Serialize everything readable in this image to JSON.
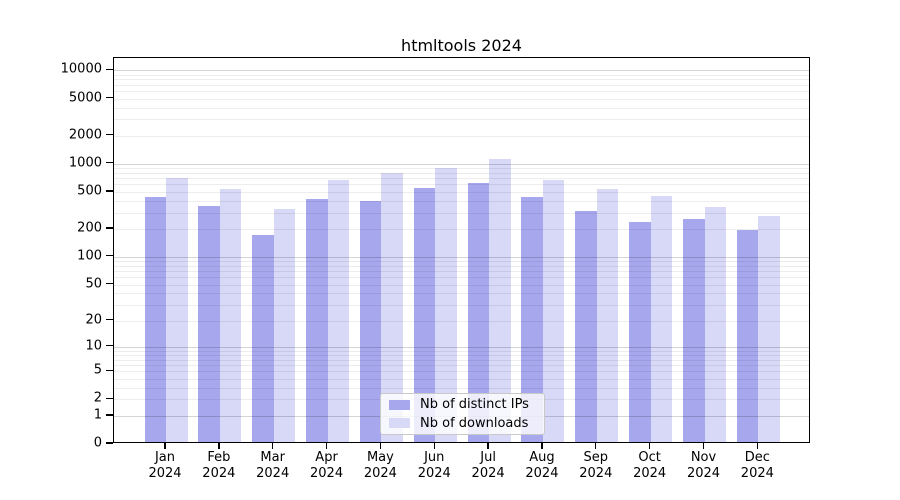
{
  "title": "htmltools 2024",
  "chart_data": {
    "type": "bar",
    "title": "htmltools 2024",
    "categories": [
      "Jan 2024",
      "Feb 2024",
      "Mar 2024",
      "Apr 2024",
      "May 2024",
      "Jun 2024",
      "Jul 2024",
      "Aug 2024",
      "Sep 2024",
      "Oct 2024",
      "Nov 2024",
      "Dec 2024"
    ],
    "series": [
      {
        "name": "Nb of distinct IPs",
        "color": "#a7a7ee",
        "values": [
          420,
          333,
          165,
          395,
          378,
          525,
          585,
          420,
          296,
          228,
          241,
          184
        ]
      },
      {
        "name": "Nb of downloads",
        "color": "#d8d8f7",
        "values": [
          665,
          513,
          310,
          630,
          750,
          863,
          1065,
          633,
          505,
          429,
          327,
          264
        ]
      }
    ],
    "xlabel": "",
    "ylabel": "",
    "yscale": "log1p",
    "yticks": [
      0,
      1,
      2,
      5,
      10,
      20,
      50,
      100,
      200,
      500,
      1000,
      2000,
      5000,
      10000
    ],
    "ylim": [
      0,
      12500
    ],
    "grid": "horizontal",
    "legend_position": "lower center inside"
  }
}
